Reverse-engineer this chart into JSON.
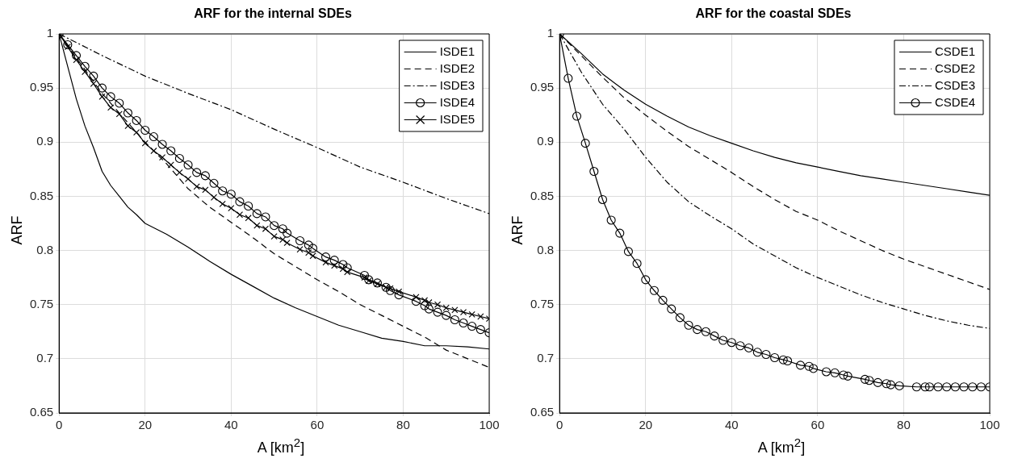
{
  "chart_data": [
    {
      "type": "line",
      "title": "ARF for the internal SDEs",
      "xlabel": "A [km$^{2}$]",
      "ylabel": "ARF",
      "xlim": [
        0,
        100
      ],
      "xticks": [
        0,
        20,
        40,
        60,
        80,
        100
      ],
      "ylim": [
        0.65,
        1
      ],
      "yticks": [
        0.65,
        0.7,
        0.75,
        0.8,
        0.85,
        0.9,
        0.95,
        1
      ],
      "grid": true,
      "legend": "top right",
      "series": [
        {
          "name": "ISDE1",
          "color": "#000000",
          "line_style": "solid",
          "marker": "none",
          "x": [
            0,
            2,
            4,
            6,
            8,
            10,
            12,
            14,
            16,
            18,
            20,
            25,
            30,
            35,
            40,
            45,
            50,
            55,
            60,
            65,
            70,
            75,
            80,
            85,
            90,
            95,
            100
          ],
          "values": [
            1,
            0.97,
            0.94,
            0.915,
            0.895,
            0.873,
            0.86,
            0.85,
            0.84,
            0.833,
            0.825,
            0.815,
            0.803,
            0.79,
            0.778,
            0.767,
            0.756,
            0.747,
            0.739,
            0.731,
            0.725,
            0.719,
            0.716,
            0.712,
            0.712,
            0.711,
            0.709
          ]
        },
        {
          "name": "ISDE2",
          "color": "#000000",
          "line_style": "dashed",
          "marker": "none",
          "x": [
            0,
            10,
            20,
            25,
            30,
            35,
            40,
            45,
            50,
            55,
            60,
            65,
            70,
            75,
            80,
            85,
            90,
            95,
            100
          ],
          "values": [
            1,
            0.945,
            0.9,
            0.88,
            0.857,
            0.84,
            0.826,
            0.812,
            0.797,
            0.785,
            0.773,
            0.762,
            0.75,
            0.74,
            0.73,
            0.72,
            0.708,
            0.7,
            0.692
          ]
        },
        {
          "name": "ISDE3",
          "color": "#000000",
          "line_style": "dotted",
          "marker": "none",
          "x": [
            0,
            10,
            20,
            30,
            40,
            50,
            60,
            70,
            80,
            90,
            100
          ],
          "values": [
            1,
            0.98,
            0.961,
            0.945,
            0.93,
            0.912,
            0.895,
            0.877,
            0.863,
            0.848,
            0.834
          ]
        },
        {
          "name": "ISDE4",
          "color": "#000000",
          "line_style": "solid",
          "marker": "circle",
          "x": [
            0,
            2,
            4,
            6,
            8,
            10,
            12,
            14,
            16,
            18,
            20,
            22,
            24,
            26,
            28,
            30,
            32,
            34,
            36,
            38,
            40,
            42,
            44,
            46,
            48,
            50,
            52,
            53,
            56,
            58,
            59,
            62,
            64,
            66,
            67,
            71,
            72,
            74,
            76,
            77,
            79,
            83,
            85,
            86,
            88,
            90,
            92,
            94,
            96,
            98,
            100
          ],
          "values": [
            1,
            0.99,
            0.98,
            0.97,
            0.961,
            0.95,
            0.942,
            0.936,
            0.927,
            0.92,
            0.911,
            0.905,
            0.898,
            0.892,
            0.885,
            0.879,
            0.872,
            0.869,
            0.862,
            0.855,
            0.852,
            0.845,
            0.841,
            0.834,
            0.831,
            0.823,
            0.82,
            0.816,
            0.809,
            0.805,
            0.802,
            0.794,
            0.791,
            0.787,
            0.784,
            0.777,
            0.773,
            0.77,
            0.766,
            0.763,
            0.759,
            0.753,
            0.749,
            0.746,
            0.743,
            0.74,
            0.736,
            0.733,
            0.73,
            0.727,
            0.724
          ]
        },
        {
          "name": "ISDE5",
          "color": "#000000",
          "line_style": "solid",
          "marker": "cross",
          "x": [
            0,
            2,
            4,
            6,
            8,
            10,
            12,
            14,
            16,
            18,
            20,
            22,
            24,
            26,
            28,
            30,
            32,
            34,
            36,
            38,
            40,
            42,
            44,
            46,
            48,
            50,
            52,
            53,
            56,
            58,
            59,
            62,
            64,
            66,
            67,
            71,
            72,
            74,
            76,
            77,
            79,
            83,
            85,
            86,
            88,
            90,
            92,
            94,
            96,
            98,
            100
          ],
          "values": [
            1,
            0.988,
            0.976,
            0.965,
            0.954,
            0.942,
            0.932,
            0.926,
            0.915,
            0.909,
            0.899,
            0.892,
            0.886,
            0.879,
            0.872,
            0.866,
            0.859,
            0.856,
            0.849,
            0.843,
            0.839,
            0.833,
            0.83,
            0.823,
            0.82,
            0.813,
            0.81,
            0.807,
            0.801,
            0.798,
            0.795,
            0.789,
            0.786,
            0.783,
            0.78,
            0.775,
            0.772,
            0.769,
            0.766,
            0.765,
            0.762,
            0.757,
            0.754,
            0.752,
            0.75,
            0.747,
            0.745,
            0.743,
            0.741,
            0.739,
            0.737
          ]
        }
      ]
    },
    {
      "type": "line",
      "title": "ARF for the coastal SDEs",
      "xlabel": "A [km$^{2}$]",
      "ylabel": "ARF",
      "xlim": [
        0,
        100
      ],
      "xticks": [
        0,
        20,
        40,
        60,
        80,
        100
      ],
      "ylim": [
        0.65,
        1
      ],
      "yticks": [
        0.65,
        0.7,
        0.75,
        0.8,
        0.85,
        0.9,
        0.95,
        1
      ],
      "grid": true,
      "legend": "top right",
      "series": [
        {
          "name": "CSDE1",
          "color": "#000000",
          "line_style": "solid",
          "marker": "none",
          "x": [
            0,
            5,
            10,
            15,
            20,
            25,
            30,
            35,
            40,
            45,
            50,
            55,
            60,
            65,
            70,
            75,
            80,
            85,
            90,
            95,
            100
          ],
          "values": [
            1,
            0.982,
            0.963,
            0.948,
            0.935,
            0.924,
            0.914,
            0.906,
            0.899,
            0.892,
            0.886,
            0.881,
            0.877,
            0.873,
            0.869,
            0.866,
            0.863,
            0.86,
            0.857,
            0.854,
            0.851
          ]
        },
        {
          "name": "CSDE2",
          "color": "#000000",
          "line_style": "dashed",
          "marker": "none",
          "x": [
            0,
            5,
            10,
            15,
            20,
            25,
            30,
            35,
            40,
            45,
            50,
            55,
            60,
            65,
            70,
            75,
            80,
            85,
            90,
            95,
            100
          ],
          "values": [
            1,
            0.98,
            0.96,
            0.941,
            0.925,
            0.91,
            0.896,
            0.884,
            0.872,
            0.859,
            0.847,
            0.836,
            0.828,
            0.818,
            0.809,
            0.8,
            0.792,
            0.785,
            0.778,
            0.771,
            0.764
          ]
        },
        {
          "name": "CSDE3",
          "color": "#000000",
          "line_style": "dotted",
          "marker": "none",
          "x": [
            0,
            5,
            10,
            15,
            20,
            25,
            30,
            35,
            40,
            45,
            50,
            55,
            60,
            65,
            70,
            75,
            80,
            85,
            90,
            95,
            100
          ],
          "values": [
            1,
            0.965,
            0.935,
            0.912,
            0.886,
            0.863,
            0.845,
            0.832,
            0.82,
            0.806,
            0.795,
            0.784,
            0.775,
            0.767,
            0.759,
            0.752,
            0.746,
            0.74,
            0.735,
            0.731,
            0.728
          ]
        },
        {
          "name": "CSDE4",
          "color": "#000000",
          "line_style": "solid",
          "marker": "circle",
          "x": [
            0,
            2,
            4,
            6,
            8,
            10,
            12,
            14,
            16,
            18,
            20,
            22,
            24,
            26,
            28,
            30,
            32,
            34,
            36,
            38,
            40,
            42,
            44,
            46,
            48,
            50,
            52,
            53,
            56,
            58,
            59,
            62,
            64,
            66,
            67,
            71,
            72,
            74,
            76,
            77,
            79,
            83,
            85,
            86,
            88,
            90,
            92,
            94,
            96,
            98,
            100
          ],
          "values": [
            1,
            0.959,
            0.924,
            0.899,
            0.873,
            0.847,
            0.828,
            0.816,
            0.799,
            0.788,
            0.773,
            0.763,
            0.754,
            0.746,
            0.738,
            0.731,
            0.727,
            0.725,
            0.721,
            0.717,
            0.715,
            0.712,
            0.71,
            0.706,
            0.704,
            0.701,
            0.699,
            0.698,
            0.694,
            0.693,
            0.691,
            0.688,
            0.687,
            0.685,
            0.684,
            0.681,
            0.68,
            0.678,
            0.677,
            0.676,
            0.675,
            0.674,
            0.674,
            0.674,
            0.674,
            0.674,
            0.674,
            0.674,
            0.674,
            0.674,
            0.674
          ]
        }
      ]
    }
  ]
}
